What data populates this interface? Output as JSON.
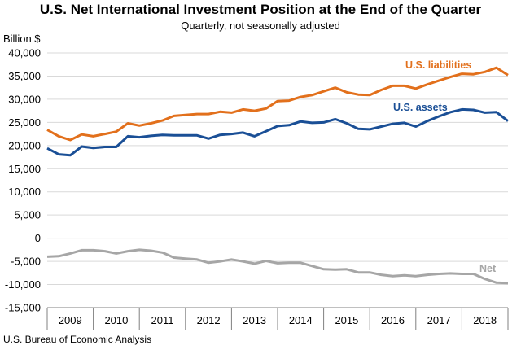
{
  "title": "U.S. Net International Investment Position at the End of the Quarter",
  "subtitle": "Quarterly, not seasonally adjusted",
  "y_unit_label": "Billion $",
  "source": "U.S. Bureau of Economic Analysis",
  "colors": {
    "liabilities": "#E2701C",
    "assets": "#1A4F96",
    "net": "#A6A6A6",
    "grid": "#D9D9D9",
    "axis": "#808080"
  },
  "chart_data": {
    "type": "line",
    "title": "U.S. Net International Investment Position at the End of the Quarter",
    "subtitle": "Quarterly, not seasonally adjusted",
    "ylabel": "Billion $",
    "ylim": [
      -15000,
      40000
    ],
    "yticks": [
      40000,
      35000,
      30000,
      25000,
      20000,
      15000,
      10000,
      5000,
      0,
      -5000,
      -10000,
      -15000
    ],
    "ytick_labels": [
      "40,000",
      "35,000",
      "30,000",
      "25,000",
      "20,000",
      "15,000",
      "10,000",
      "5,000",
      "0",
      "-5,000",
      "-10,000",
      "-15,000"
    ],
    "grid": true,
    "legend": "inline labels",
    "year_labels": [
      "2009",
      "2010",
      "2011",
      "2012",
      "2013",
      "2014",
      "2015",
      "2016",
      "2017",
      "2018"
    ],
    "x": [
      "2008 Q4",
      "2009 Q1",
      "2009 Q2",
      "2009 Q3",
      "2009 Q4",
      "2010 Q1",
      "2010 Q2",
      "2010 Q3",
      "2010 Q4",
      "2011 Q1",
      "2011 Q2",
      "2011 Q3",
      "2011 Q4",
      "2012 Q1",
      "2012 Q2",
      "2012 Q3",
      "2012 Q4",
      "2013 Q1",
      "2013 Q2",
      "2013 Q3",
      "2013 Q4",
      "2014 Q1",
      "2014 Q2",
      "2014 Q3",
      "2014 Q4",
      "2015 Q1",
      "2015 Q2",
      "2015 Q3",
      "2015 Q4",
      "2016 Q1",
      "2016 Q2",
      "2016 Q3",
      "2016 Q4",
      "2017 Q1",
      "2017 Q2",
      "2017 Q3",
      "2017 Q4",
      "2018 Q1",
      "2018 Q2",
      "2018 Q3",
      "2018 Q4"
    ],
    "series": [
      {
        "name": "U.S. liabilities",
        "color_key": "liabilities",
        "values": [
          23400,
          22000,
          21200,
          22400,
          22000,
          22500,
          23000,
          24800,
          24300,
          24800,
          25400,
          26400,
          26600,
          26800,
          26800,
          27300,
          27100,
          27800,
          27500,
          28000,
          29600,
          29700,
          30500,
          30900,
          31700,
          32500,
          31500,
          31000,
          30900,
          32000,
          32900,
          32900,
          32300,
          33200,
          34000,
          34800,
          35500,
          35400,
          35900,
          36800,
          35200
        ]
      },
      {
        "name": "U.S. assets",
        "color_key": "assets",
        "values": [
          19400,
          18100,
          17900,
          19800,
          19500,
          19700,
          19700,
          22000,
          21800,
          22100,
          22300,
          22200,
          22200,
          22200,
          21500,
          22300,
          22500,
          22800,
          22000,
          23100,
          24200,
          24400,
          25200,
          24900,
          25000,
          25700,
          24800,
          23600,
          23500,
          24100,
          24700,
          24900,
          24100,
          25300,
          26300,
          27200,
          27800,
          27700,
          27100,
          27200,
          25300
        ]
      },
      {
        "name": "Net",
        "color_key": "net",
        "values": [
          -4000,
          -3900,
          -3300,
          -2600,
          -2600,
          -2800,
          -3300,
          -2800,
          -2500,
          -2700,
          -3100,
          -4200,
          -4400,
          -4600,
          -5300,
          -5000,
          -4600,
          -5000,
          -5500,
          -4900,
          -5400,
          -5300,
          -5300,
          -6000,
          -6700,
          -6800,
          -6700,
          -7400,
          -7400,
          -7900,
          -8200,
          -8000,
          -8200,
          -7900,
          -7700,
          -7600,
          -7700,
          -7700,
          -8800,
          -9600,
          -9700
        ]
      }
    ],
    "labels": {
      "liabilities": "U.S. liabilities",
      "assets": "U.S. assets",
      "net": "Net"
    }
  }
}
